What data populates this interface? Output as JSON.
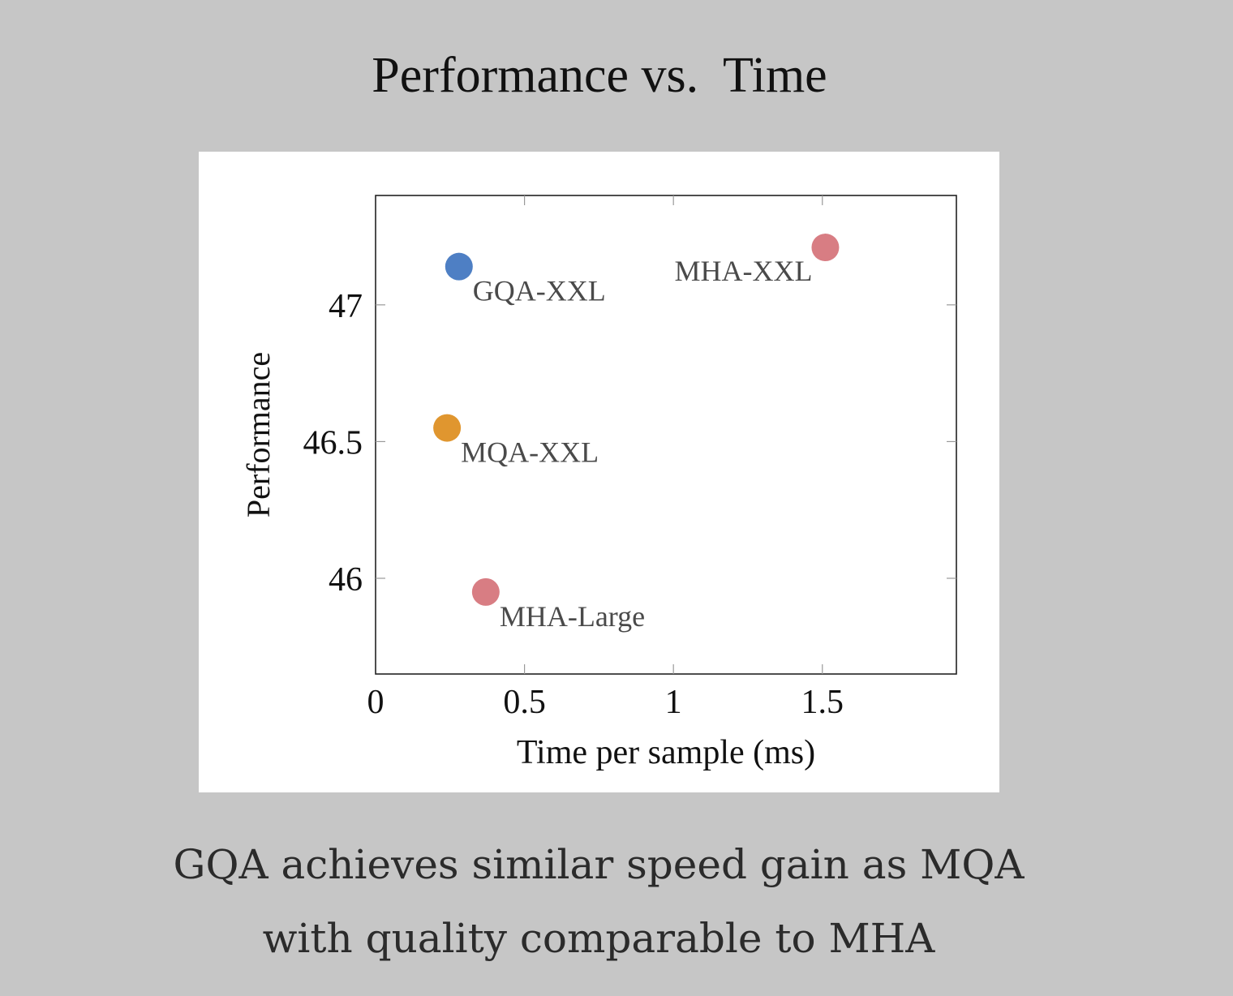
{
  "slide": {
    "title": "Performance vs.  Time",
    "caption_line1": "GQA achieves similar speed gain as MQA",
    "caption_line2": "with quality comparable to MHA"
  },
  "chart_data": {
    "type": "scatter",
    "title": "",
    "xlabel": "Time per sample (ms)",
    "ylabel": "Performance",
    "xlim": [
      0,
      1.95
    ],
    "ylim": [
      45.65,
      47.4
    ],
    "xticks": [
      {
        "value": 0,
        "label": "0"
      },
      {
        "value": 0.5,
        "label": "0.5"
      },
      {
        "value": 1,
        "label": "1"
      },
      {
        "value": 1.5,
        "label": "1.5"
      }
    ],
    "yticks": [
      {
        "value": 46,
        "label": "46"
      },
      {
        "value": 46.5,
        "label": "46.5"
      },
      {
        "value": 47,
        "label": "47"
      }
    ],
    "grid": false,
    "points": [
      {
        "name": "GQA-XXL",
        "x": 0.28,
        "y": 47.14,
        "color": "#4e7fc4",
        "label_side": "right"
      },
      {
        "name": "MHA-XXL",
        "x": 1.51,
        "y": 47.21,
        "color": "#d87d83",
        "label_side": "left"
      },
      {
        "name": "MQA-XXL",
        "x": 0.24,
        "y": 46.55,
        "color": "#e0962f",
        "label_side": "right"
      },
      {
        "name": "MHA-Large",
        "x": 0.37,
        "y": 45.95,
        "color": "#d87d83",
        "label_side": "right"
      }
    ]
  }
}
